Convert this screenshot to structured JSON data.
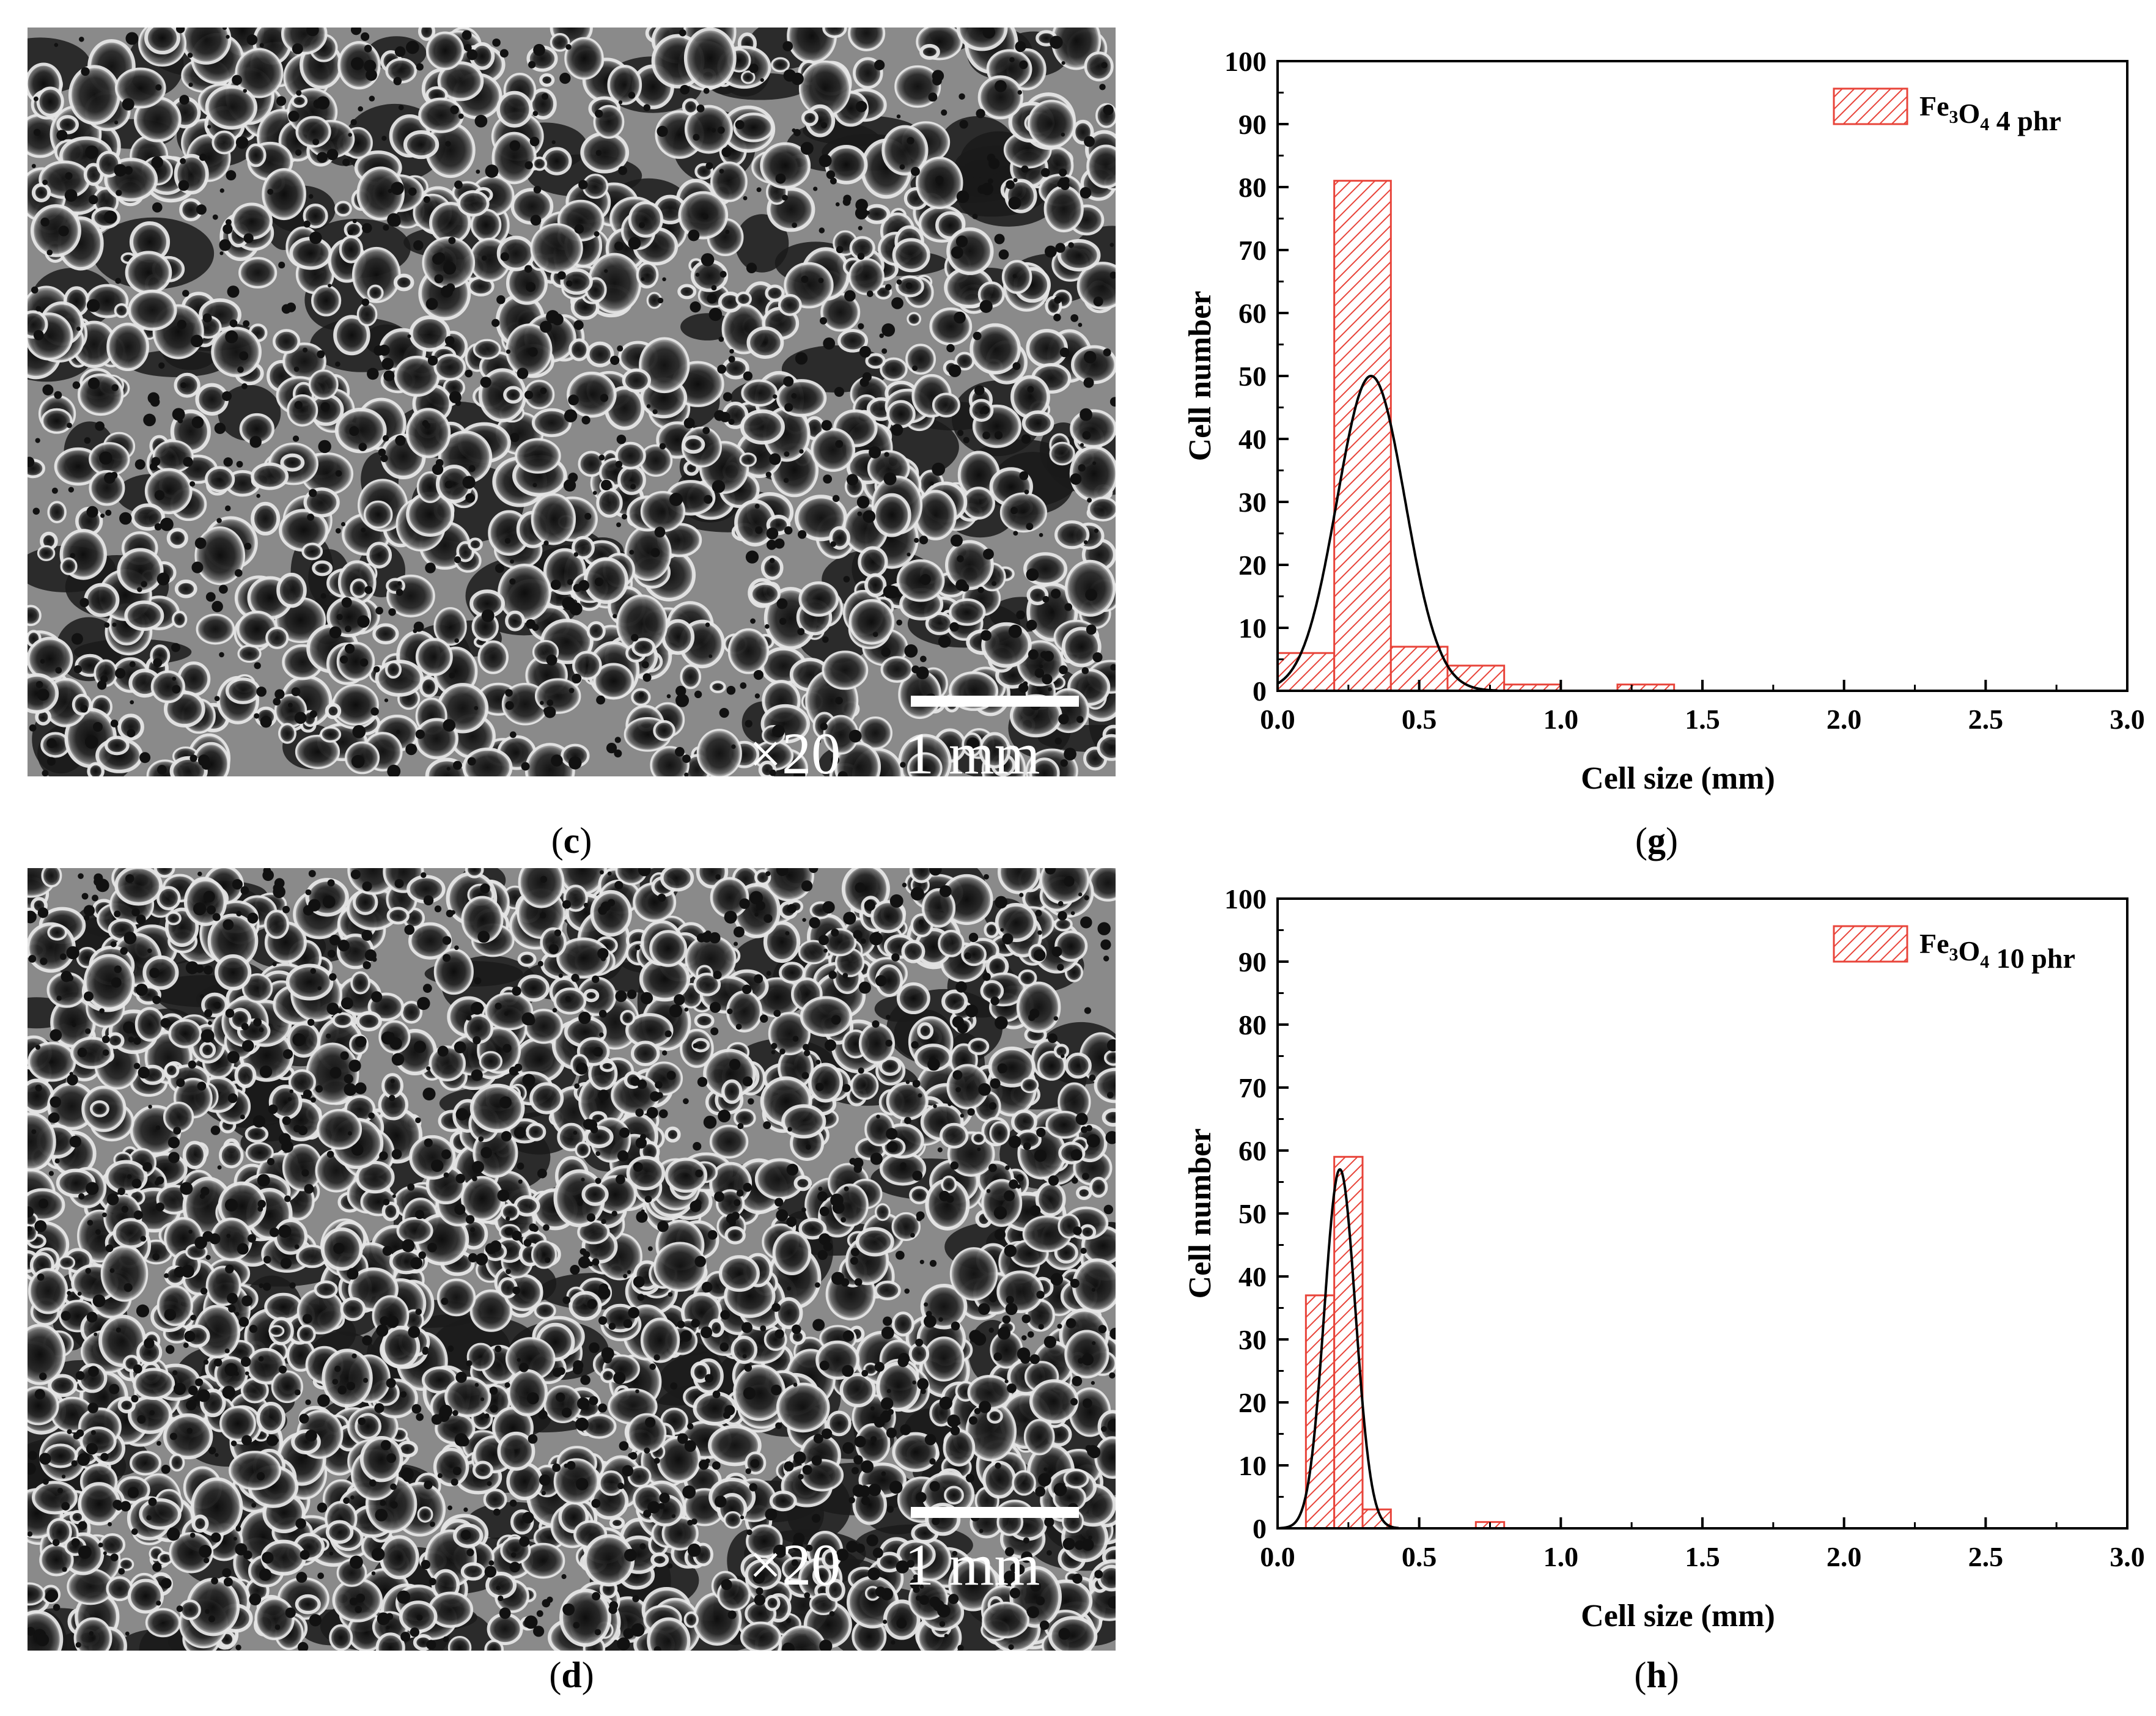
{
  "panels": [
    {
      "id": "c",
      "caption": "c",
      "magnification": "×20",
      "scale_label": "1 mm"
    },
    {
      "id": "d",
      "caption": "d",
      "magnification": "×20",
      "scale_label": "1 mm"
    }
  ],
  "chart_captions": [
    "g",
    "h"
  ],
  "chart_data": [
    {
      "type": "bar",
      "title": "",
      "xlabel": "Cell size (mm)",
      "ylabel": "Cell number",
      "xlim": [
        0.0,
        3.0
      ],
      "ylim": [
        0,
        100
      ],
      "xticks": [
        "0.0",
        "0.5",
        "1.0",
        "1.5",
        "2.0",
        "2.5",
        "3.0"
      ],
      "yticks": [
        "0",
        "10",
        "20",
        "30",
        "40",
        "50",
        "60",
        "70",
        "80",
        "90",
        "100"
      ],
      "legend": {
        "position": "top-right",
        "label_main": "Fe",
        "label_sub1": "3",
        "label_mid": "O",
        "label_sub2": "4",
        "label_tail": " 4 phr"
      },
      "bin_width": 0.2,
      "bins": [
        {
          "x0": 0.0,
          "value": 6
        },
        {
          "x0": 0.2,
          "value": 81
        },
        {
          "x0": 0.4,
          "value": 7
        },
        {
          "x0": 0.6,
          "value": 4
        },
        {
          "x0": 0.8,
          "value": 1
        },
        {
          "x0": 1.2,
          "value": 1
        }
      ],
      "fit": {
        "type": "gaussian",
        "mean": 0.33,
        "sigma": 0.12,
        "peak": 50
      },
      "colors": {
        "bar": "#e8443a",
        "hatch": "#e8443a",
        "fit": "#000000"
      }
    },
    {
      "type": "bar",
      "title": "",
      "xlabel": "Cell size (mm)",
      "ylabel": "Cell number",
      "xlim": [
        0.0,
        3.0
      ],
      "ylim": [
        0,
        100
      ],
      "xticks": [
        "0.0",
        "0.5",
        "1.0",
        "1.5",
        "2.0",
        "2.5",
        "3.0"
      ],
      "yticks": [
        "0",
        "10",
        "20",
        "30",
        "40",
        "50",
        "60",
        "70",
        "80",
        "90",
        "100"
      ],
      "legend": {
        "position": "top-right",
        "label_main": "Fe",
        "label_sub1": "3",
        "label_mid": "O",
        "label_sub2": "4",
        "label_tail": " 10 phr"
      },
      "bin_width": 0.1,
      "bins": [
        {
          "x0": 0.1,
          "value": 37
        },
        {
          "x0": 0.2,
          "value": 59
        },
        {
          "x0": 0.3,
          "value": 3
        },
        {
          "x0": 0.7,
          "value": 1
        }
      ],
      "fit": {
        "type": "gaussian",
        "mean": 0.22,
        "sigma": 0.055,
        "peak": 57
      },
      "colors": {
        "bar": "#e8443a",
        "hatch": "#e8443a",
        "fit": "#000000"
      }
    }
  ]
}
